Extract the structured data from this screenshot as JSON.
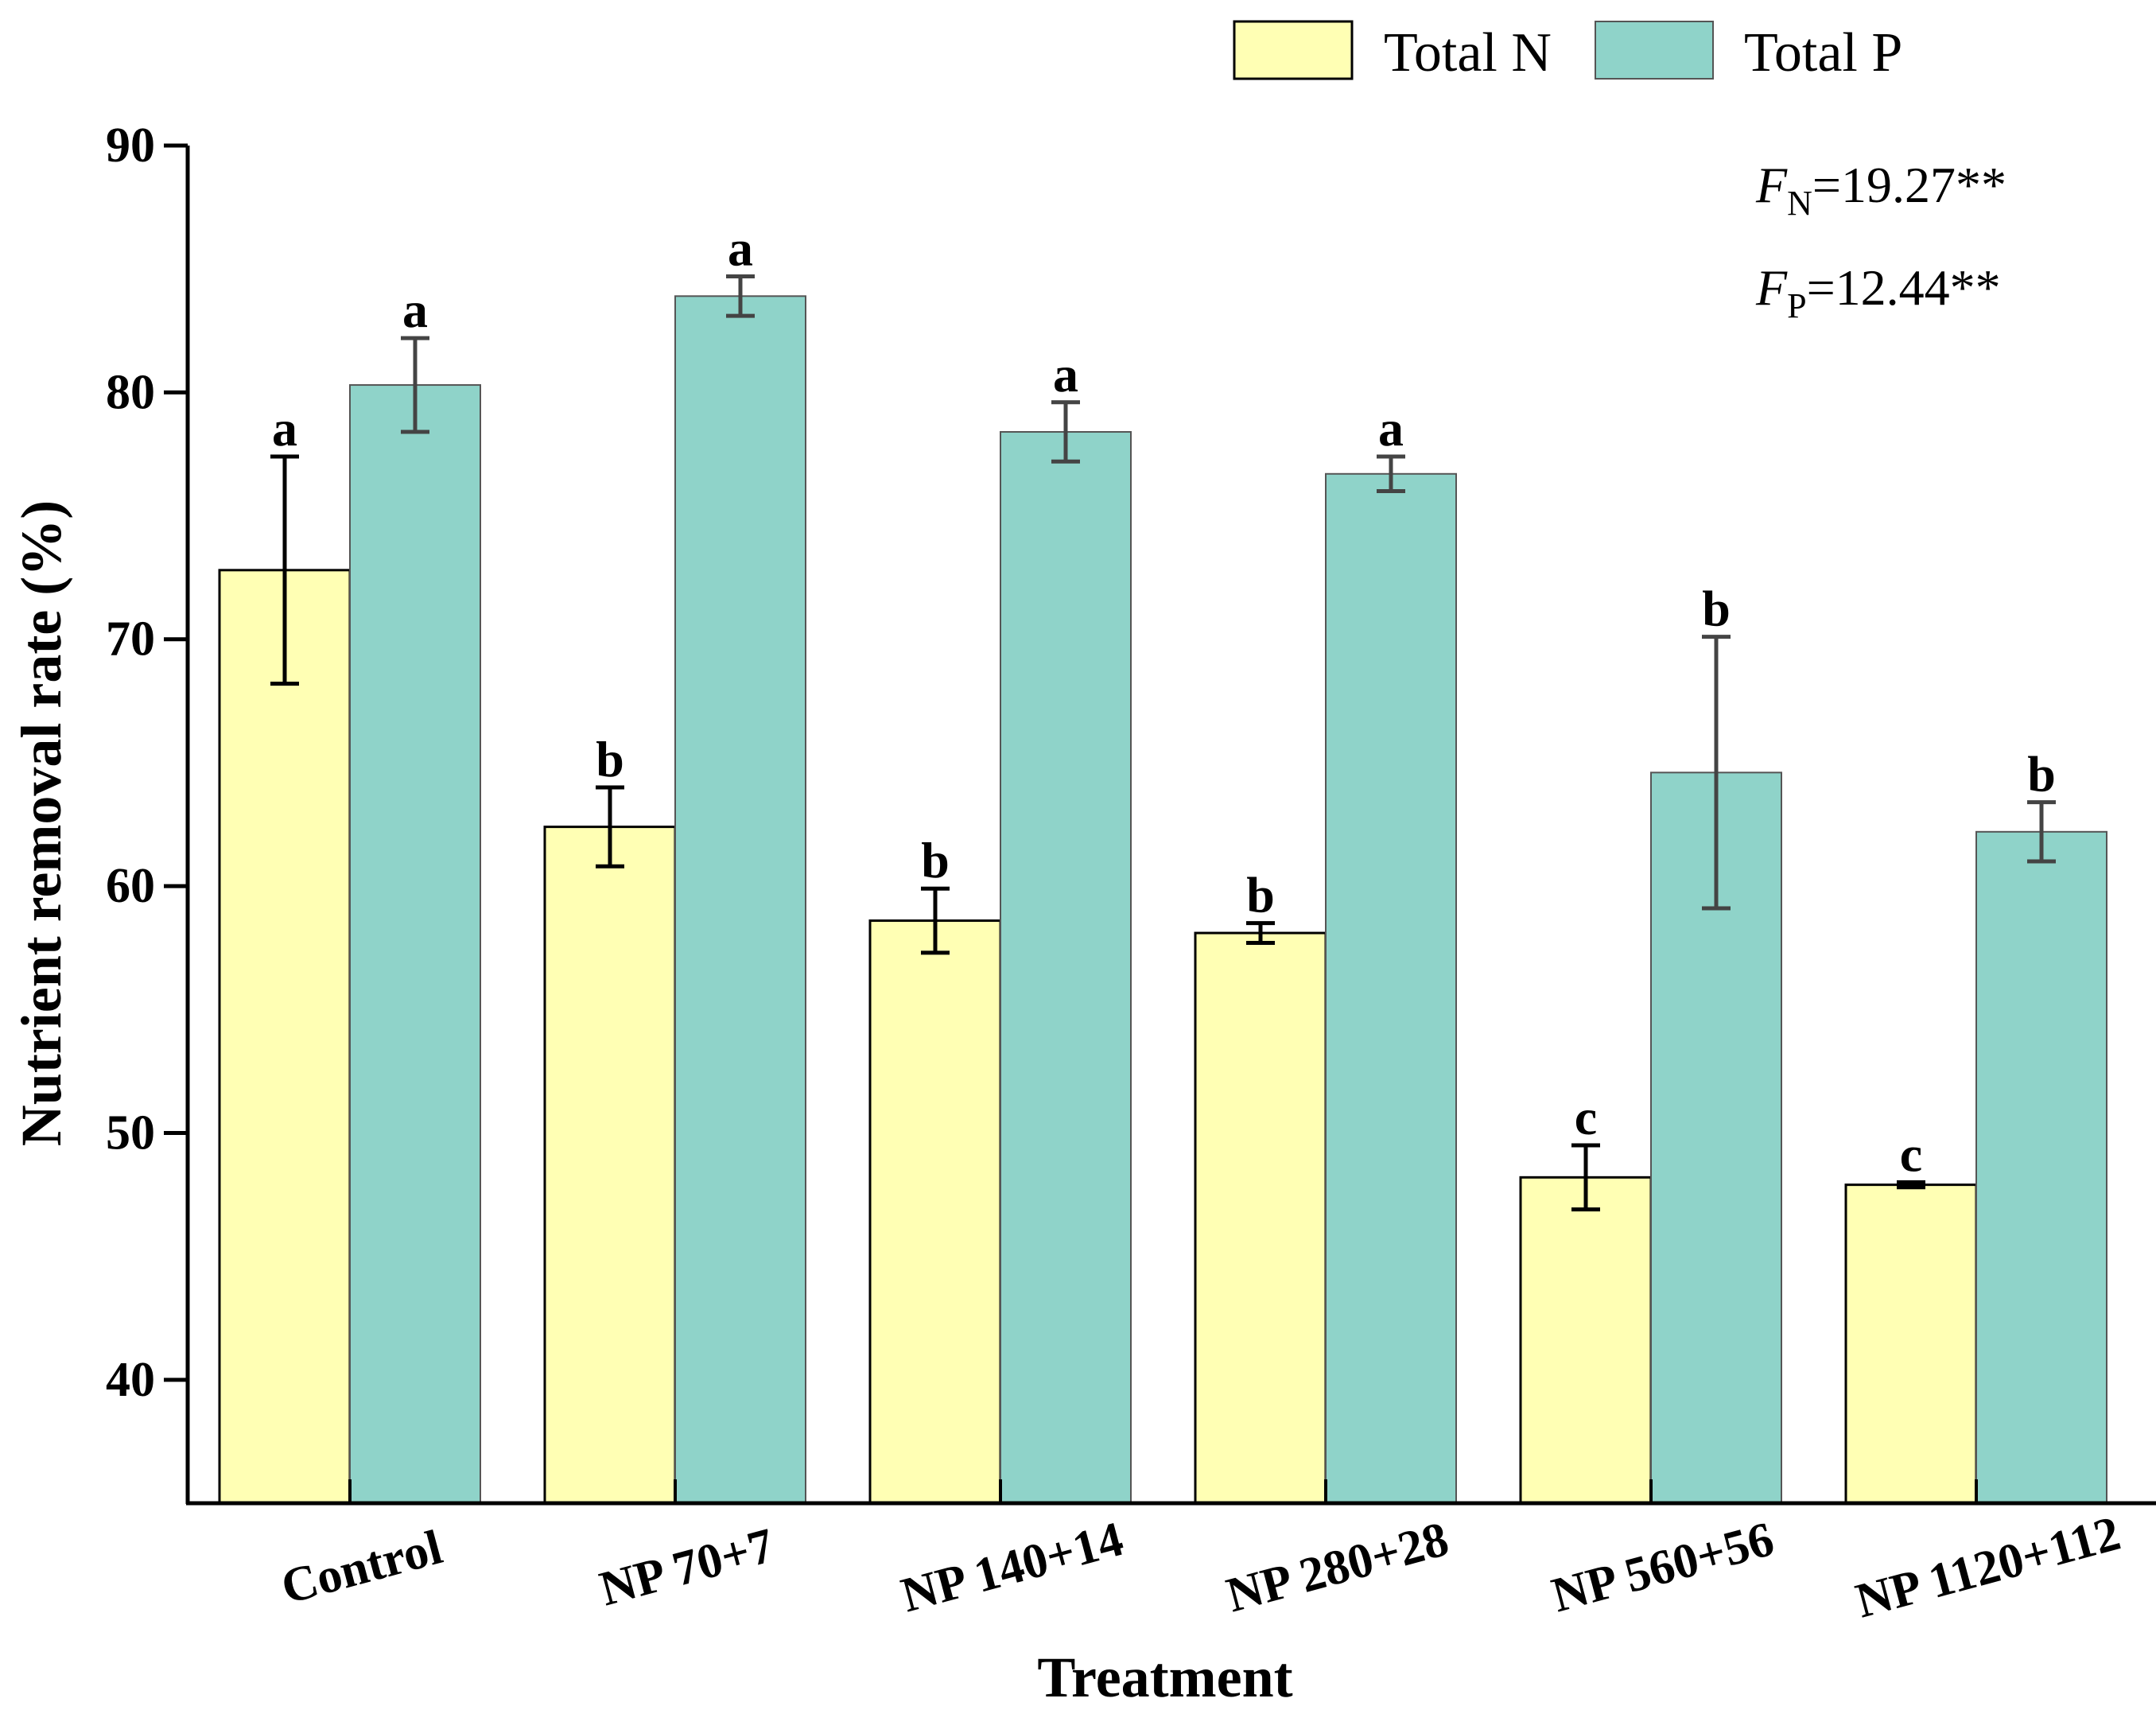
{
  "chart_data": {
    "type": "bar",
    "title": "",
    "xlabel": "Treatment",
    "ylabel": "Nutrient removal rate  (%)",
    "ylim": [
      35,
      90
    ],
    "yticks": [
      40,
      50,
      60,
      70,
      80,
      90
    ],
    "categories": [
      "Control",
      "NP 70+7",
      "NP 140+14",
      "NP 280+28",
      "NP 560+56",
      "NP 1120+112"
    ],
    "series": [
      {
        "name": "Total N",
        "color": "#FFFFB4",
        "errColor": "#000000",
        "values": [
          72.8,
          62.4,
          58.6,
          58.1,
          48.2,
          47.9
        ],
        "errors": [
          4.6,
          1.6,
          1.3,
          0.4,
          1.3,
          0.1
        ],
        "letters": [
          "a",
          "b",
          "b",
          "b",
          "c",
          "c"
        ]
      },
      {
        "name": "Total P",
        "color": "#8FD3C9",
        "errColor": "#444444",
        "values": [
          80.3,
          83.9,
          78.4,
          76.7,
          64.6,
          62.2
        ],
        "errors": [
          1.9,
          0.8,
          1.2,
          0.7,
          5.5,
          1.2
        ],
        "letters": [
          "a",
          "a",
          "a",
          "a",
          "b",
          "b"
        ]
      }
    ],
    "legend_position": "top-right",
    "stats": {
      "fn": {
        "symbol": "F",
        "sub": "N",
        "value": "=19.27**"
      },
      "fp": {
        "symbol": "F",
        "sub": "P",
        "value": "=12.44**"
      }
    }
  }
}
